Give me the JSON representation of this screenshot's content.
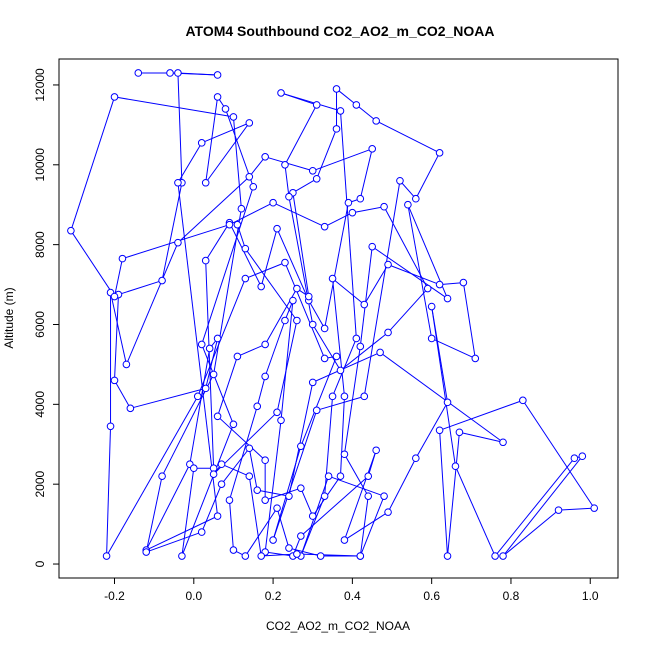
{
  "chart_data": {
    "type": "line",
    "title": "ATOM4 Southbound CO2_AO2_m_CO2_NOAA",
    "xlabel": "CO2_AO2_m_CO2_NOAA",
    "ylabel": "Altitude (m)",
    "xlim": [
      -0.34,
      1.07
    ],
    "ylim": [
      -350,
      12650
    ],
    "x_ticks": [
      -0.2,
      0.0,
      0.2,
      0.4,
      0.6,
      0.8,
      1.0
    ],
    "x_tick_labels": [
      "-0.2",
      "0.0",
      "0.2",
      "0.4",
      "0.6",
      "0.8",
      "1.0"
    ],
    "y_ticks": [
      0,
      2000,
      4000,
      6000,
      8000,
      10000,
      12000
    ],
    "y_tick_labels": [
      "0",
      "2000",
      "4000",
      "6000",
      "8000",
      "10000",
      "12000"
    ],
    "grid": false,
    "legend": "none",
    "series": [
      {
        "color": "#0000ff",
        "marker": "open-circle",
        "points": [
          [
            -0.14,
            12300
          ],
          [
            -0.06,
            12300
          ],
          [
            0.06,
            12250
          ],
          [
            -0.04,
            12300
          ],
          [
            -0.03,
            9550
          ],
          [
            -0.08,
            7100
          ],
          [
            -0.19,
            6750
          ],
          [
            -0.2,
            4600
          ],
          [
            -0.16,
            3900
          ],
          [
            0.03,
            4400
          ],
          [
            0.06,
            5650
          ],
          [
            0.04,
            5400
          ],
          [
            -0.01,
            2500
          ],
          [
            -0.12,
            350
          ],
          [
            0.06,
            1200
          ],
          [
            -0.04,
            9550
          ],
          [
            0.02,
            10550
          ],
          [
            0.14,
            11050
          ],
          [
            0.03,
            9550
          ],
          [
            0.06,
            11700
          ],
          [
            0.08,
            11400
          ],
          [
            0.15,
            9450
          ],
          [
            0.02,
            5500
          ],
          [
            0.1,
            3500
          ],
          [
            -0.03,
            200
          ],
          [
            0.0,
            2400
          ],
          [
            0.05,
            2400
          ],
          [
            0.03,
            7600
          ],
          [
            0.09,
            8550
          ],
          [
            0.17,
            6950
          ],
          [
            0.21,
            8400
          ],
          [
            0.29,
            6600
          ],
          [
            0.33,
            5900
          ],
          [
            0.39,
            9050
          ],
          [
            0.42,
            9150
          ],
          [
            0.45,
            10400
          ],
          [
            0.3,
            9850
          ],
          [
            0.18,
            10200
          ],
          [
            0.14,
            9700
          ],
          [
            -0.04,
            8050
          ],
          [
            -0.17,
            5000
          ],
          [
            -0.21,
            6800
          ],
          [
            -0.21,
            3450
          ],
          [
            -0.22,
            200
          ],
          [
            0.01,
            4200
          ],
          [
            0.13,
            7150
          ],
          [
            0.23,
            7550
          ],
          [
            0.33,
            5150
          ],
          [
            0.36,
            5200
          ],
          [
            0.27,
            2950
          ],
          [
            0.2,
            600
          ],
          [
            0.31,
            3850
          ],
          [
            0.43,
            4200
          ],
          [
            0.52,
            9600
          ],
          [
            0.56,
            9150
          ],
          [
            0.62,
            10300
          ],
          [
            0.46,
            11100
          ],
          [
            0.41,
            11500
          ],
          [
            0.36,
            11900
          ],
          [
            0.36,
            10900
          ],
          [
            0.31,
            9650
          ],
          [
            0.25,
            9300
          ],
          [
            0.29,
            6700
          ],
          [
            0.26,
            6900
          ],
          [
            0.18,
            5500
          ],
          [
            0.11,
            5200
          ],
          [
            0.06,
            3700
          ],
          [
            0.18,
            2600
          ],
          [
            0.18,
            1600
          ],
          [
            0.27,
            1900
          ],
          [
            0.3,
            1200
          ],
          [
            0.37,
            2200
          ],
          [
            0.38,
            4200
          ],
          [
            0.35,
            7150
          ],
          [
            0.43,
            6500
          ],
          [
            0.49,
            7500
          ],
          [
            0.62,
            7000
          ],
          [
            0.68,
            7050
          ],
          [
            0.71,
            5150
          ],
          [
            0.6,
            5650
          ],
          [
            0.54,
            9000
          ],
          [
            0.64,
            6650
          ],
          [
            0.45,
            7950
          ],
          [
            0.42,
            5450
          ],
          [
            0.38,
            2750
          ],
          [
            0.44,
            1700
          ],
          [
            0.42,
            200
          ],
          [
            0.32,
            200
          ],
          [
            0.24,
            400
          ],
          [
            0.21,
            1400
          ],
          [
            0.13,
            200
          ],
          [
            0.1,
            350
          ],
          [
            0.09,
            1600
          ],
          [
            0.16,
            3950
          ],
          [
            0.18,
            4700
          ],
          [
            0.23,
            6100
          ],
          [
            0.25,
            6600
          ],
          [
            0.22,
            3600
          ],
          [
            0.18,
            300
          ],
          [
            0.25,
            200
          ],
          [
            0.27,
            700
          ],
          [
            0.44,
            2200
          ],
          [
            0.46,
            2850
          ],
          [
            0.38,
            600
          ],
          [
            0.49,
            1300
          ],
          [
            0.56,
            2650
          ],
          [
            0.64,
            4050
          ],
          [
            0.6,
            6450
          ],
          [
            0.66,
            2450
          ],
          [
            0.76,
            200
          ],
          [
            0.96,
            2650
          ],
          [
            0.98,
            2700
          ],
          [
            0.78,
            200
          ],
          [
            0.92,
            1350
          ],
          [
            1.01,
            1400
          ],
          [
            0.83,
            4100
          ],
          [
            0.62,
            3350
          ],
          [
            0.64,
            200
          ],
          [
            0.67,
            3300
          ],
          [
            0.78,
            3050
          ],
          [
            0.47,
            5300
          ],
          [
            0.3,
            4550
          ],
          [
            0.24,
            1700
          ],
          [
            0.16,
            1850
          ],
          [
            0.14,
            2900
          ],
          [
            0.07,
            2000
          ],
          [
            0.02,
            800
          ],
          [
            -0.12,
            300
          ],
          [
            -0.08,
            2200
          ],
          [
            0.05,
            4750
          ],
          [
            0.12,
            8900
          ],
          [
            0.1,
            11200
          ],
          [
            -0.2,
            11700
          ],
          [
            -0.31,
            8350
          ],
          [
            -0.2,
            6700
          ],
          [
            -0.18,
            7650
          ],
          [
            0.09,
            8500
          ],
          [
            0.2,
            9050
          ],
          [
            0.33,
            8450
          ],
          [
            0.4,
            8800
          ],
          [
            0.48,
            8950
          ],
          [
            0.59,
            6900
          ],
          [
            0.49,
            5800
          ],
          [
            0.37,
            4850
          ],
          [
            0.3,
            6000
          ],
          [
            0.24,
            9200
          ],
          [
            0.23,
            10000
          ],
          [
            0.31,
            11500
          ],
          [
            0.22,
            11800
          ],
          [
            0.37,
            11350
          ],
          [
            0.41,
            5650
          ],
          [
            0.35,
            4200
          ],
          [
            0.33,
            1700
          ],
          [
            0.27,
            200
          ],
          [
            0.34,
            2200
          ],
          [
            0.48,
            1700
          ],
          [
            0.42,
            200
          ],
          [
            0.26,
            250
          ],
          [
            0.17,
            200
          ],
          [
            0.14,
            2200
          ],
          [
            0.07,
            2500
          ],
          [
            0.05,
            2250
          ],
          [
            0.21,
            3800
          ],
          [
            0.26,
            6100
          ],
          [
            0.13,
            7900
          ],
          [
            0.11,
            8500
          ]
        ]
      }
    ]
  }
}
